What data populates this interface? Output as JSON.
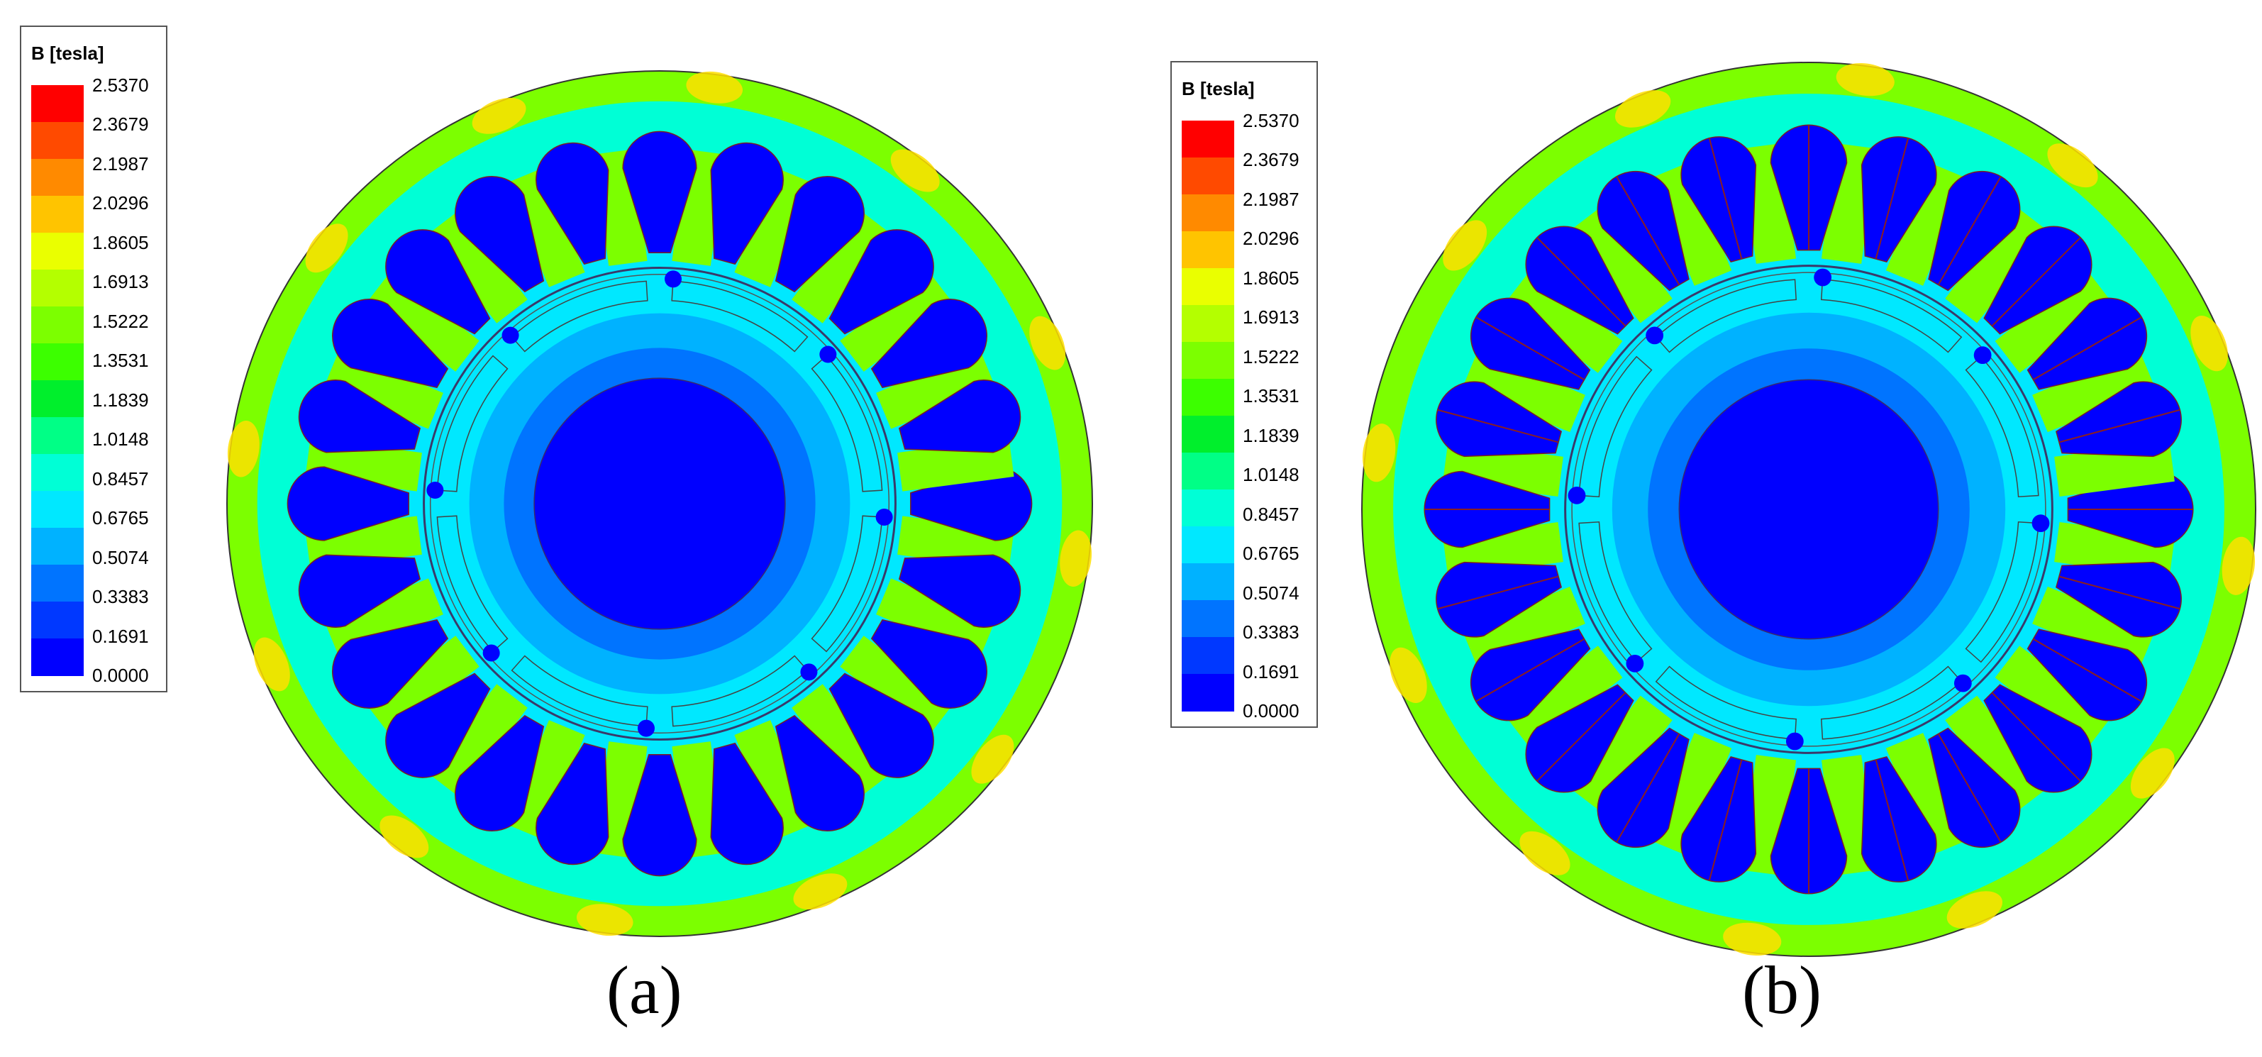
{
  "legend": {
    "title": "B [tesla]",
    "ticks": [
      "2.5370",
      "2.3679",
      "2.1987",
      "2.0296",
      "1.8605",
      "1.6913",
      "1.5222",
      "1.3531",
      "1.1839",
      "1.0148",
      "0.8457",
      "0.6765",
      "0.5074",
      "0.3383",
      "0.1691",
      "0.0000"
    ],
    "colors": [
      "#ff0000",
      "#ff4a00",
      "#ff8a00",
      "#ffc400",
      "#eaff00",
      "#b4ff00",
      "#7cff00",
      "#3cff00",
      "#00ef2c",
      "#00ff86",
      "#00ffd6",
      "#00e8ff",
      "#00b2ff",
      "#0074ff",
      "#0038ff",
      "#0000ff"
    ]
  },
  "figures": [
    {
      "caption": "(a)",
      "slots": 24,
      "spoked_slots": false
    },
    {
      "caption": "(b)",
      "slots": 24,
      "spoked_slots": true
    }
  ],
  "field_colors": {
    "yoke_outer": "#7cff00",
    "yoke_mid": "#00ffd6",
    "yoke_inner": "#00e8ff",
    "tooth": "#7cff00",
    "slot": "#0000ff",
    "rotor_outer": "#00e8ff",
    "rotor_mid": "#00b2ff",
    "rotor_inner": "#0074ff",
    "shaft": "#0000ff",
    "hotspot": "#ffe000"
  }
}
